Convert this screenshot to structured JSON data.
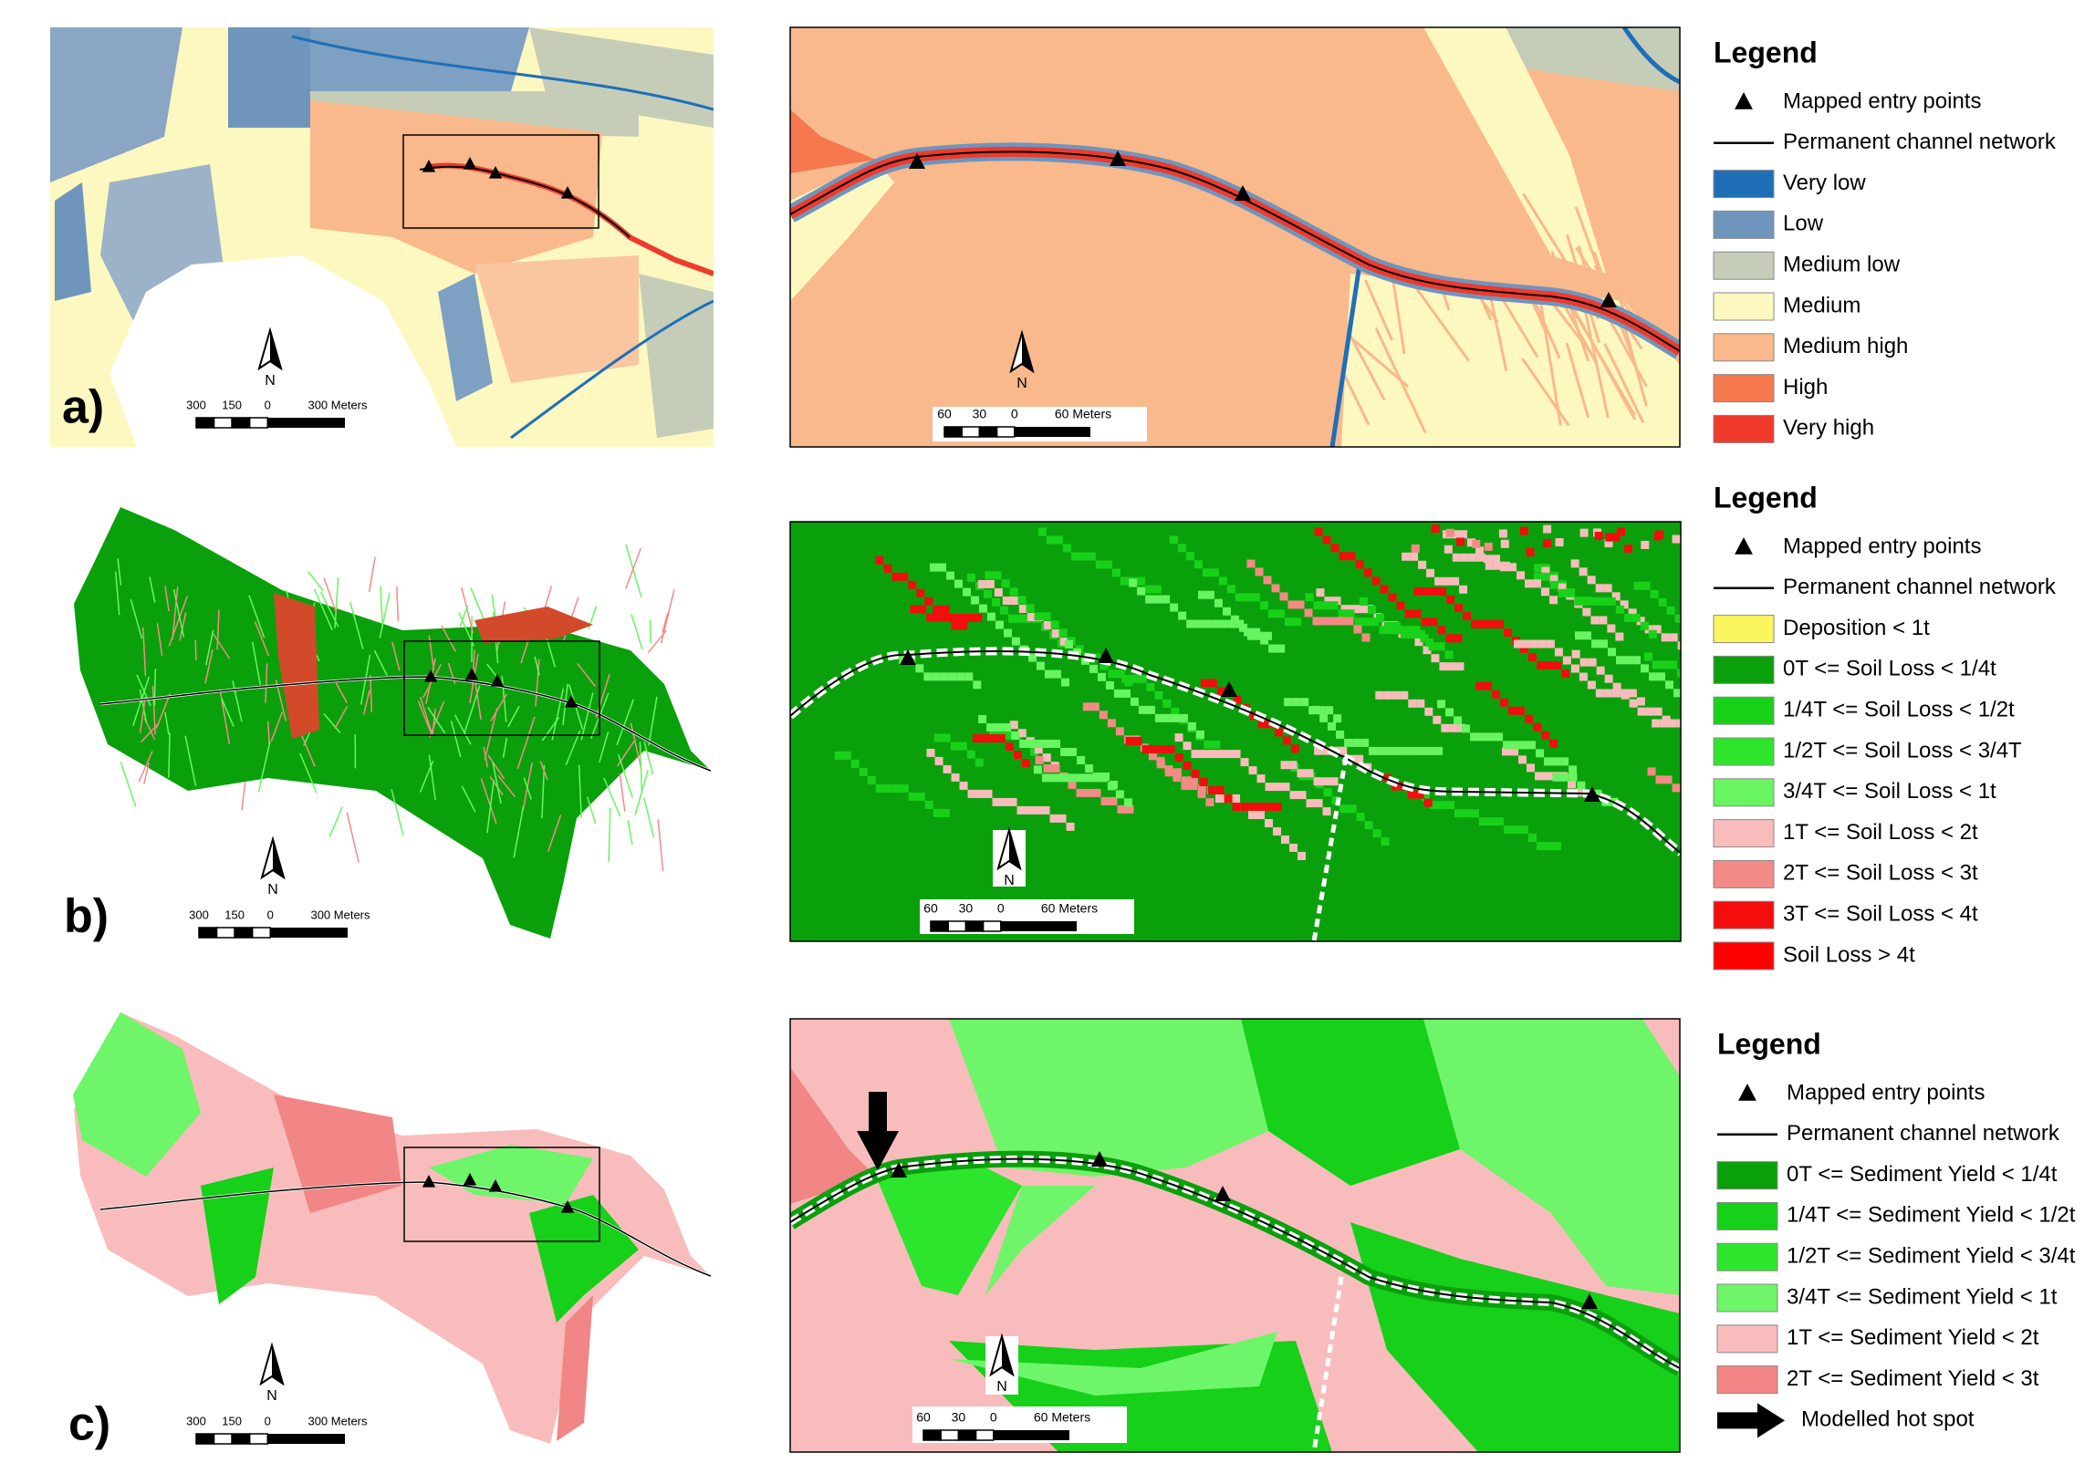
{
  "panels": [
    {
      "label": "a)",
      "north": "N",
      "overview_scale": [
        "300",
        "150",
        "0",
        "300 Meters"
      ],
      "zoom_scale": [
        "60",
        "30",
        "0",
        "60 Meters"
      ],
      "legend": {
        "title": "Legend",
        "items": [
          {
            "label": "Mapped entry points",
            "symbol": "triangle"
          },
          {
            "label": "Permanent channel network",
            "symbol": "line"
          },
          {
            "label": "Very low",
            "color": "#1f6fb8"
          },
          {
            "label": "Low",
            "color": "#6f95bd"
          },
          {
            "label": "Medium low",
            "color": "#c5cdb8"
          },
          {
            "label": "Medium",
            "color": "#fdf8c0"
          },
          {
            "label": "Medium high",
            "color": "#f9b98c"
          },
          {
            "label": "High",
            "color": "#f6784e"
          },
          {
            "label": "Very high",
            "color": "#ef3a2c"
          }
        ]
      }
    },
    {
      "label": "b)",
      "north": "N",
      "overview_scale": [
        "300",
        "150",
        "0",
        "300 Meters"
      ],
      "zoom_scale": [
        "60",
        "30",
        "0",
        "60 Meters"
      ],
      "legend": {
        "title": "Legend",
        "items": [
          {
            "label": "Mapped entry points",
            "symbol": "triangle"
          },
          {
            "label": "Permanent channel network",
            "symbol": "line"
          },
          {
            "label": "Deposition < 1t",
            "color": "#fbf55e"
          },
          {
            "label": "0T <= Soil Loss < 1/4t",
            "color": "#0aa00c"
          },
          {
            "label": "1/4T <= Soil Loss < 1/2t",
            "color": "#18d21a"
          },
          {
            "label": "1/2T <= Soil Loss < 3/4T",
            "color": "#2ee52c"
          },
          {
            "label": "3/4T <= Soil Loss < 1t",
            "color": "#68f561"
          },
          {
            "label": "1T <= Soil Loss < 2t",
            "color": "#f9bcbc"
          },
          {
            "label": "2T <= Soil Loss < 3t",
            "color": "#f48a86"
          },
          {
            "label": "3T <= Soil Loss < 4t",
            "color": "#f30d0d"
          },
          {
            "label": "Soil Loss > 4t",
            "color": "#ff0000"
          }
        ]
      }
    },
    {
      "label": "c)",
      "north": "N",
      "overview_scale": [
        "300",
        "150",
        "0",
        "300 Meters"
      ],
      "zoom_scale": [
        "60",
        "30",
        "0",
        "60 Meters"
      ],
      "legend": {
        "title": "Legend",
        "items": [
          {
            "label": "Mapped entry points",
            "symbol": "triangle"
          },
          {
            "label": "Permanent channel network",
            "symbol": "line"
          },
          {
            "label": "0T <= Sediment Yield < 1/4t",
            "color": "#0aa00c"
          },
          {
            "label": "1/4T <= Sediment Yield < 1/2t",
            "color": "#16d01a"
          },
          {
            "label": "1/2T <= Sediment Yield < 3/4t",
            "color": "#2de52d"
          },
          {
            "label": "3/4T <= Sediment Yield < 1t",
            "color": "#6ef56a"
          },
          {
            "label": "1T <= Sediment Yield < 2t",
            "color": "#f9bcbc"
          },
          {
            "label": "2T <= Sediment Yield < 3t",
            "color": "#f28585"
          },
          {
            "label": "Modelled hot spot",
            "symbol": "arrow"
          }
        ]
      }
    }
  ]
}
